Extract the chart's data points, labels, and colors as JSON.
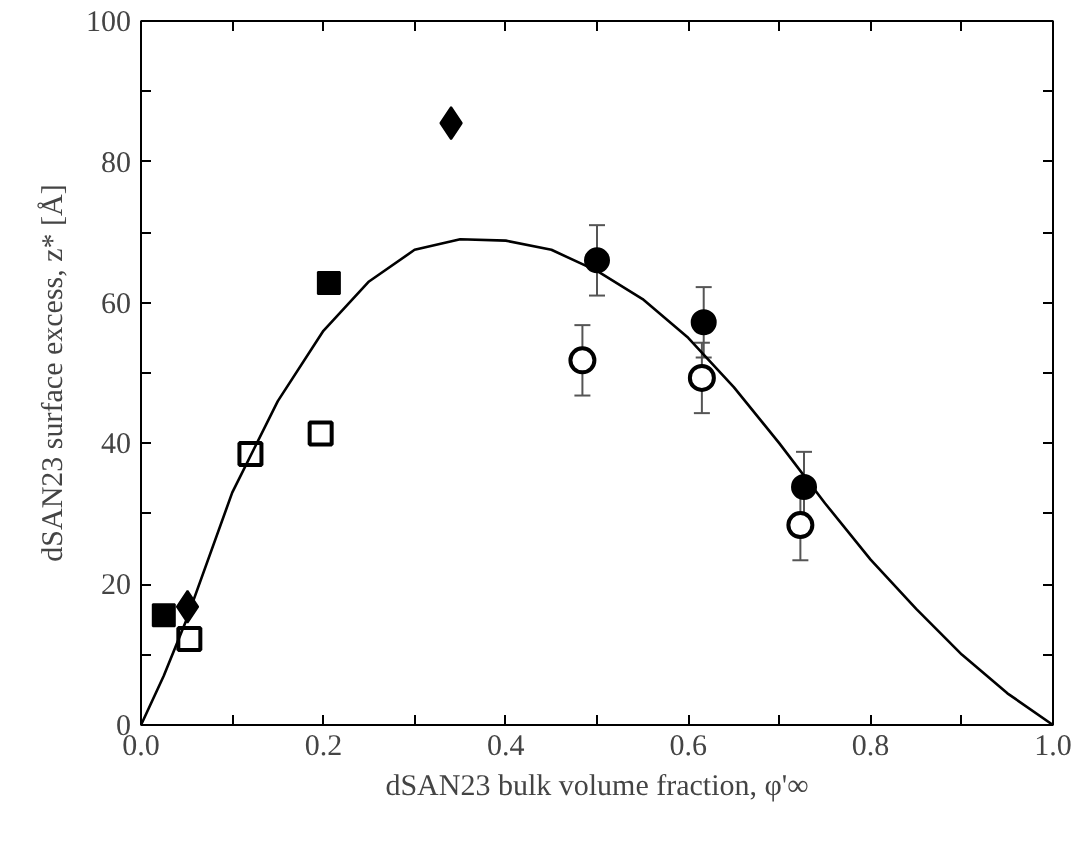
{
  "chart_data": {
    "type": "scatter",
    "xlabel": "dSAN23 bulk volume fraction, φ'∞",
    "ylabel": "dSAN23 surface excess, z* [Å]",
    "xlim": [
      0,
      1
    ],
    "ylim": [
      0,
      100
    ],
    "xticks": [
      {
        "value": 0,
        "label": "0.0"
      },
      {
        "value": 0.1,
        "label": null
      },
      {
        "value": 0.2,
        "label": "0.2"
      },
      {
        "value": 0.3,
        "label": null
      },
      {
        "value": 0.4,
        "label": "0.4"
      },
      {
        "value": 0.5,
        "label": null
      },
      {
        "value": 0.6,
        "label": "0.6"
      },
      {
        "value": 0.7,
        "label": null
      },
      {
        "value": 0.8,
        "label": "0.8"
      },
      {
        "value": 0.9,
        "label": null
      },
      {
        "value": 1,
        "label": "1.0"
      }
    ],
    "yticks": [
      0,
      {
        "value": 10,
        "label": null
      },
      20,
      {
        "value": 30,
        "label": null
      },
      40,
      {
        "value": 50,
        "label": null
      },
      60,
      {
        "value": 70,
        "label": null
      },
      80,
      {
        "value": 90,
        "label": null
      },
      100
    ],
    "grid": false,
    "series": [
      {
        "marker": "square",
        "color": "#000000",
        "x": [
          0.025,
          0.206
        ],
        "values": [
          15.6,
          62.8
        ]
      },
      {
        "marker": "diamond",
        "color": "#000000",
        "x": [
          0.051,
          0.34
        ],
        "values": [
          16.8,
          85.5
        ]
      },
      {
        "marker": "square_open",
        "color": "#000000",
        "x": [
          0.053,
          0.12,
          0.197
        ],
        "values": [
          12.2,
          38.5,
          41.4
        ]
      },
      {
        "marker": "circle",
        "color": "#000000",
        "x": [
          0.5,
          0.617,
          0.727
        ],
        "values": [
          66,
          57.2,
          33.8
        ],
        "errors": [
          5,
          5,
          5
        ]
      },
      {
        "marker": "circle_open",
        "color": "#000000",
        "x": [
          0.484,
          0.615,
          0.723
        ],
        "values": [
          51.8,
          49.3,
          28.4
        ],
        "errors": [
          5,
          5,
          5
        ]
      },
      {
        "type": "line",
        "marker": "none",
        "line_style": "solid",
        "color": "#000000",
        "x": [
          0,
          0.025,
          0.05,
          0.1,
          0.15,
          0.2,
          0.25,
          0.3,
          0.35,
          0.4,
          0.45,
          0.5,
          0.55,
          0.6,
          0.65,
          0.7,
          0.75,
          0.8,
          0.85,
          0.9,
          0.95,
          1.0
        ],
        "values": [
          0,
          7,
          15,
          33,
          46,
          56,
          63,
          67.5,
          69,
          68.8,
          67.5,
          64.5,
          60.5,
          55,
          48,
          40,
          31.5,
          23.5,
          16.5,
          10,
          4.5,
          0
        ]
      }
    ]
  }
}
